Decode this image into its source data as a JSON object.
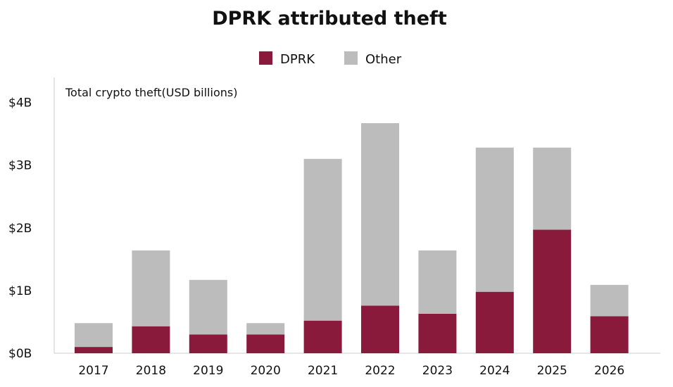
{
  "chart_data": {
    "type": "bar",
    "stacked": true,
    "title": "DPRK attributed theft",
    "ylabel": "Total crypto theft(USD billions)",
    "xlabel": "",
    "categories": [
      "2017",
      "2018",
      "2019",
      "2020",
      "2021",
      "2022",
      "2023",
      "2024",
      "2025",
      "2026"
    ],
    "series": [
      {
        "name": "DPRK",
        "color": "#8a1a3c",
        "values": [
          0.1,
          0.43,
          0.3,
          0.3,
          0.52,
          0.76,
          0.63,
          0.98,
          1.97,
          0.59
        ]
      },
      {
        "name": "Other",
        "color": "#bcbcbc",
        "values": [
          0.38,
          1.21,
          0.87,
          0.18,
          2.58,
          2.91,
          1.01,
          2.3,
          1.31,
          0.5
        ]
      }
    ],
    "ylim": [
      0,
      4.4
    ],
    "yticks": [
      0,
      1,
      2,
      3,
      4
    ],
    "ytick_labels": [
      "$0B",
      "$1B",
      "$2B",
      "$3B",
      "$4B"
    ],
    "grid": false,
    "legend_position": "top-center"
  }
}
